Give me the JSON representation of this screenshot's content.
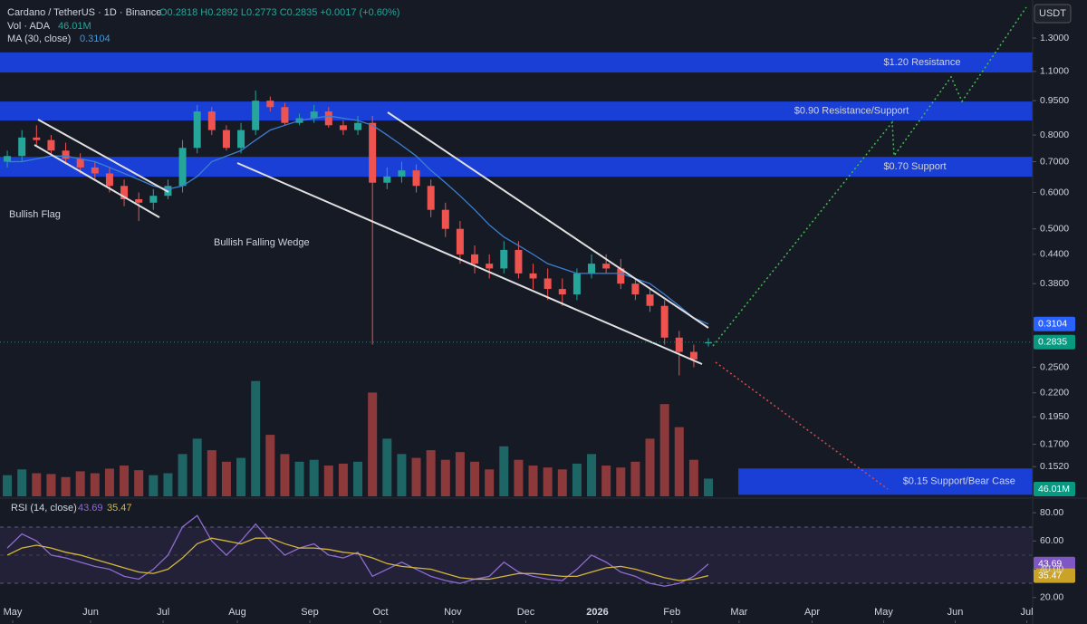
{
  "chart_data": {
    "type": "candlestick",
    "header": {
      "title": "Cardano / TetherUS · 1D · Binance",
      "ohlc": "O0.2818 H0.2892 L0.2773 C0.2835 +0.0017 (+0.60%)",
      "vol_label": "Vol · ADA",
      "vol_value": "46.01M",
      "ma_label": "MA (30, close)",
      "rsi_label": "RSI (14, close)",
      "currency": "USDT"
    },
    "log_scale": true,
    "up_color": "#26a69a",
    "down_color": "#ef5350",
    "ma_color": "#3d7fd0",
    "zone_color": "#1a3fd6",
    "xlim": [
      -0.5,
      70.2
    ],
    "xticks": [
      {
        "value": 0.37,
        "label": "May"
      },
      {
        "value": 5.7,
        "label": "Jun"
      },
      {
        "value": 10.67,
        "label": "Jul"
      },
      {
        "value": 15.75,
        "label": "Aug"
      },
      {
        "value": 20.71,
        "label": "Sep"
      },
      {
        "value": 25.55,
        "label": "Oct"
      },
      {
        "value": 30.5,
        "label": "Nov"
      },
      {
        "value": 35.5,
        "label": "Dec"
      },
      {
        "value": 40.4,
        "label": "2026"
      },
      {
        "value": 45.5,
        "label": "Feb"
      },
      {
        "value": 50.1,
        "label": "Mar"
      },
      {
        "value": 55.1,
        "label": "Apr"
      },
      {
        "value": 60,
        "label": "May"
      },
      {
        "value": 64.9,
        "label": "Jun"
      },
      {
        "value": 69.8,
        "label": "Jul"
      }
    ],
    "ylim": [
      0.131,
      1.573
    ],
    "yticks": [
      {
        "value": 1.3,
        "label": "1.3000"
      },
      {
        "value": 1.1,
        "label": "1.1000"
      },
      {
        "value": 0.95,
        "label": "0.9500"
      },
      {
        "value": 0.8,
        "label": "0.8000"
      },
      {
        "value": 0.7,
        "label": "0.7000"
      },
      {
        "value": 0.6,
        "label": "0.6000"
      },
      {
        "value": 0.5,
        "label": "0.5000"
      },
      {
        "value": 0.44,
        "label": "0.4400"
      },
      {
        "value": 0.38,
        "label": "0.3800"
      },
      {
        "value": 0.25,
        "label": "0.2500"
      },
      {
        "value": 0.22,
        "label": "0.2200"
      },
      {
        "value": 0.195,
        "label": "0.1950"
      },
      {
        "value": 0.17,
        "label": "0.1700"
      },
      {
        "value": 0.152,
        "label": "0.1520"
      }
    ],
    "open": [
      0.7,
      0.72,
      0.79,
      0.78,
      0.74,
      0.71,
      0.68,
      0.66,
      0.62,
      0.58,
      0.57,
      0.59,
      0.62,
      0.75,
      0.9,
      0.82,
      0.75,
      0.82,
      0.95,
      0.92,
      0.85,
      0.87,
      0.9,
      0.84,
      0.82,
      0.85,
      0.63,
      0.65,
      0.67,
      0.62,
      0.55,
      0.5,
      0.44,
      0.42,
      0.41,
      0.45,
      0.4,
      0.39,
      0.37,
      0.36,
      0.4,
      0.42,
      0.41,
      0.38,
      0.36,
      0.34,
      0.29,
      0.27,
      0.2818
    ],
    "high": [
      0.74,
      0.82,
      0.84,
      0.8,
      0.77,
      0.73,
      0.7,
      0.68,
      0.64,
      0.6,
      0.61,
      0.64,
      0.78,
      0.93,
      0.92,
      0.84,
      0.85,
      1.0,
      0.97,
      0.94,
      0.89,
      0.93,
      0.92,
      0.86,
      0.88,
      0.88,
      0.68,
      0.7,
      0.69,
      0.64,
      0.57,
      0.52,
      0.46,
      0.44,
      0.47,
      0.47,
      0.42,
      0.41,
      0.39,
      0.41,
      0.44,
      0.44,
      0.43,
      0.39,
      0.37,
      0.35,
      0.3,
      0.28,
      0.2892
    ],
    "low": [
      0.68,
      0.7,
      0.76,
      0.72,
      0.69,
      0.66,
      0.64,
      0.6,
      0.56,
      0.52,
      0.55,
      0.58,
      0.6,
      0.73,
      0.8,
      0.74,
      0.73,
      0.8,
      0.9,
      0.84,
      0.84,
      0.85,
      0.83,
      0.8,
      0.8,
      0.28,
      0.61,
      0.63,
      0.6,
      0.53,
      0.48,
      0.42,
      0.4,
      0.39,
      0.4,
      0.39,
      0.37,
      0.35,
      0.34,
      0.35,
      0.39,
      0.4,
      0.37,
      0.35,
      0.33,
      0.28,
      0.24,
      0.25,
      0.2773
    ],
    "close": [
      0.72,
      0.79,
      0.78,
      0.74,
      0.71,
      0.68,
      0.66,
      0.62,
      0.58,
      0.57,
      0.59,
      0.62,
      0.75,
      0.9,
      0.82,
      0.75,
      0.82,
      0.95,
      0.92,
      0.85,
      0.87,
      0.9,
      0.84,
      0.82,
      0.85,
      0.63,
      0.65,
      0.67,
      0.62,
      0.55,
      0.5,
      0.44,
      0.42,
      0.41,
      0.45,
      0.4,
      0.39,
      0.37,
      0.36,
      0.4,
      0.42,
      0.41,
      0.38,
      0.36,
      0.34,
      0.29,
      0.27,
      0.26,
      0.2835
    ],
    "ma": [
      0.7,
      0.7,
      0.71,
      0.72,
      0.72,
      0.71,
      0.7,
      0.68,
      0.66,
      0.64,
      0.62,
      0.61,
      0.62,
      0.65,
      0.7,
      0.72,
      0.74,
      0.78,
      0.82,
      0.84,
      0.86,
      0.87,
      0.88,
      0.87,
      0.86,
      0.84,
      0.8,
      0.76,
      0.72,
      0.67,
      0.63,
      0.59,
      0.55,
      0.51,
      0.48,
      0.46,
      0.44,
      0.42,
      0.41,
      0.4,
      0.4,
      0.4,
      0.4,
      0.39,
      0.38,
      0.36,
      0.34,
      0.32,
      0.3104
    ],
    "vlim": [
      0,
      330
    ],
    "volume": [
      55,
      70,
      60,
      58,
      50,
      65,
      60,
      72,
      80,
      68,
      55,
      60,
      110,
      150,
      120,
      90,
      100,
      300,
      160,
      110,
      90,
      95,
      80,
      85,
      90,
      270,
      150,
      110,
      100,
      120,
      95,
      115,
      90,
      70,
      130,
      95,
      80,
      75,
      70,
      85,
      110,
      80,
      75,
      90,
      150,
      240,
      180,
      95,
      46.01
    ],
    "rsi_ylim": [
      1.9,
      88.4
    ],
    "rsi_yticks": [
      {
        "value": 80,
        "label": "80.00"
      },
      {
        "value": 60,
        "label": "60.00"
      },
      {
        "value": 40,
        "label": "40.00"
      },
      {
        "value": 20,
        "label": "20.00"
      }
    ],
    "rsi_color": "#8e6bd0",
    "rsi_ma_color": "#d4b73a",
    "rsi": [
      55,
      65,
      60,
      50,
      48,
      45,
      42,
      40,
      35,
      33,
      40,
      50,
      70,
      78,
      60,
      50,
      60,
      72,
      60,
      50,
      55,
      58,
      50,
      48,
      52,
      35,
      40,
      45,
      40,
      35,
      32,
      30,
      33,
      35,
      45,
      38,
      35,
      33,
      32,
      40,
      50,
      45,
      38,
      35,
      30,
      28,
      30,
      35,
      43.69
    ],
    "rsi_ma": [
      50,
      55,
      57,
      55,
      52,
      50,
      47,
      44,
      41,
      38,
      37,
      40,
      48,
      58,
      62,
      60,
      58,
      62,
      62,
      58,
      55,
      55,
      54,
      52,
      51,
      48,
      44,
      42,
      41,
      40,
      37,
      34,
      33,
      33,
      35,
      37,
      37,
      36,
      35,
      35,
      38,
      41,
      42,
      40,
      37,
      34,
      32,
      33,
      35.47
    ],
    "zones": [
      {
        "label": "$1.20 Resistance",
        "ylim": [
          1.094,
          1.21
        ]
      },
      {
        "label": "$0.90 Resistance/Support",
        "ylim": [
          0.86,
          0.946
        ]
      },
      {
        "label": "$0.70 Support",
        "ylim": [
          0.649,
          0.717
        ]
      },
      {
        "label": "$0.15 Support/Bear Case",
        "ylim": [
          0.132,
          0.1506
        ],
        "xlim": [
          50.05,
          70.2
        ]
      }
    ],
    "annotations": [
      "Bullish Flag",
      "Bullish Falling Wedge"
    ]
  }
}
